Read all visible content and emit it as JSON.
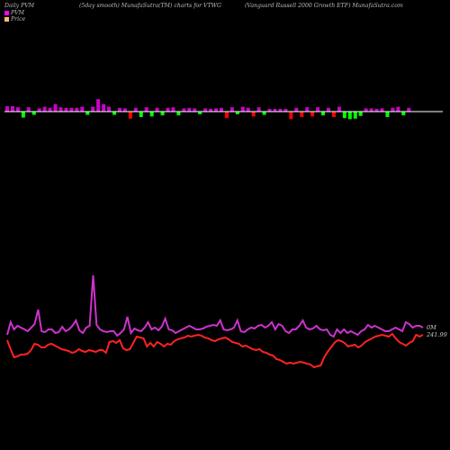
{
  "header": {
    "left": "Daily PVM",
    "middle": "(5day smooth) MunafaSutra(TM) charts for VTWG",
    "right": "(Vanguard Russell 2000  Growth ETF) MunafaSutra.com"
  },
  "legend": {
    "pvm_label": "PVM",
    "price_label": "Price",
    "pvm_color": "#ff00ff",
    "price_color": "#ffbb77"
  },
  "chart_data": {
    "type": "line",
    "price_last_label": "241.99",
    "volume_last_label": "0M",
    "colors": {
      "pvm_positive": "#cc00cc",
      "pvm_negative_up": "#ff0000",
      "pvm_negative": "#00ff00",
      "volume_line": "#cc33cc",
      "price_line": "#ff2222",
      "baseline": "#ffffff"
    },
    "pvm": [
      {
        "v": 1.0,
        "c": "pos"
      },
      {
        "v": 1.0,
        "c": "pos"
      },
      {
        "v": 0.8,
        "c": "pos"
      },
      {
        "v": -1.1,
        "c": "neg"
      },
      {
        "v": 0.8,
        "c": "pos"
      },
      {
        "v": -0.6,
        "c": "neg"
      },
      {
        "v": 0.6,
        "c": "pos"
      },
      {
        "v": 0.9,
        "c": "pos"
      },
      {
        "v": 0.7,
        "c": "pos"
      },
      {
        "v": 1.4,
        "c": "pos"
      },
      {
        "v": 0.8,
        "c": "pos"
      },
      {
        "v": 0.7,
        "c": "pos"
      },
      {
        "v": 0.7,
        "c": "pos"
      },
      {
        "v": 0.7,
        "c": "pos"
      },
      {
        "v": 0.9,
        "c": "pos"
      },
      {
        "v": -0.6,
        "c": "neg"
      },
      {
        "v": 0.9,
        "c": "pos"
      },
      {
        "v": 2.3,
        "c": "pos"
      },
      {
        "v": 1.4,
        "c": "pos"
      },
      {
        "v": 0.9,
        "c": "pos"
      },
      {
        "v": -0.6,
        "c": "neg"
      },
      {
        "v": 0.7,
        "c": "pos"
      },
      {
        "v": 0.6,
        "c": "pos"
      },
      {
        "v": -1.3,
        "c": "up"
      },
      {
        "v": 0.7,
        "c": "pos"
      },
      {
        "v": -1.0,
        "c": "neg"
      },
      {
        "v": 0.8,
        "c": "pos"
      },
      {
        "v": -0.9,
        "c": "neg"
      },
      {
        "v": 0.7,
        "c": "pos"
      },
      {
        "v": -0.7,
        "c": "neg"
      },
      {
        "v": 0.7,
        "c": "pos"
      },
      {
        "v": 0.8,
        "c": "pos"
      },
      {
        "v": -0.7,
        "c": "neg"
      },
      {
        "v": 0.6,
        "c": "pos"
      },
      {
        "v": 0.7,
        "c": "pos"
      },
      {
        "v": 0.6,
        "c": "pos"
      },
      {
        "v": -0.5,
        "c": "neg"
      },
      {
        "v": 0.6,
        "c": "pos"
      },
      {
        "v": 0.5,
        "c": "pos"
      },
      {
        "v": 0.6,
        "c": "pos"
      },
      {
        "v": 0.7,
        "c": "pos"
      },
      {
        "v": -1.2,
        "c": "up"
      },
      {
        "v": 0.8,
        "c": "pos"
      },
      {
        "v": -0.5,
        "c": "neg"
      },
      {
        "v": 0.9,
        "c": "pos"
      },
      {
        "v": 0.7,
        "c": "pos"
      },
      {
        "v": -0.9,
        "c": "up"
      },
      {
        "v": 0.8,
        "c": "pos"
      },
      {
        "v": -0.6,
        "c": "neg"
      },
      {
        "v": 0.5,
        "c": "pos"
      },
      {
        "v": 0.5,
        "c": "pos"
      },
      {
        "v": 0.5,
        "c": "pos"
      },
      {
        "v": 0.5,
        "c": "pos"
      },
      {
        "v": -1.4,
        "c": "up"
      },
      {
        "v": 0.7,
        "c": "pos"
      },
      {
        "v": -1.0,
        "c": "up"
      },
      {
        "v": 0.8,
        "c": "pos"
      },
      {
        "v": -0.9,
        "c": "up"
      },
      {
        "v": 0.8,
        "c": "pos"
      },
      {
        "v": -0.7,
        "c": "neg"
      },
      {
        "v": 0.7,
        "c": "pos"
      },
      {
        "v": -1.0,
        "c": "up"
      },
      {
        "v": 0.9,
        "c": "pos"
      },
      {
        "v": -1.2,
        "c": "neg"
      },
      {
        "v": -1.4,
        "c": "neg"
      },
      {
        "v": -1.3,
        "c": "neg"
      },
      {
        "v": -0.8,
        "c": "neg"
      },
      {
        "v": 0.6,
        "c": "pos"
      },
      {
        "v": 0.6,
        "c": "pos"
      },
      {
        "v": 0.5,
        "c": "pos"
      },
      {
        "v": 0.6,
        "c": "pos"
      },
      {
        "v": -1.0,
        "c": "neg"
      },
      {
        "v": 0.7,
        "c": "pos"
      },
      {
        "v": 0.9,
        "c": "pos"
      },
      {
        "v": -0.7,
        "c": "neg"
      },
      {
        "v": 0.7,
        "c": "pos"
      }
    ],
    "volume": [
      372,
      358,
      366,
      362,
      364,
      366,
      368,
      364,
      360,
      344,
      368,
      369,
      366,
      366,
      370,
      369,
      363,
      368,
      366,
      362,
      356,
      367,
      370,
      364,
      362,
      306,
      361,
      366,
      368,
      369,
      368,
      368,
      373,
      370,
      366,
      352,
      370,
      365,
      367,
      368,
      364,
      358,
      366,
      364,
      367,
      363,
      354,
      366,
      367,
      370,
      368,
      366,
      364,
      362,
      364,
      366,
      366,
      365,
      363,
      362,
      361,
      362,
      356,
      366,
      367,
      366,
      364,
      356,
      368,
      369,
      366,
      364,
      365,
      362,
      361,
      364,
      362,
      358,
      366,
      360,
      362,
      368,
      370,
      366,
      366,
      362,
      356,
      364,
      366,
      365,
      362,
      366,
      367,
      366,
      372,
      374,
      366,
      370,
      366,
      370,
      368,
      370,
      372,
      368,
      366,
      361,
      364,
      362,
      364,
      366,
      368,
      368,
      366,
      364,
      366,
      368,
      358,
      360,
      364,
      362,
      362,
      364
    ],
    "price": [
      378,
      388,
      397,
      396,
      394,
      394,
      393,
      389,
      382,
      383,
      386,
      386,
      383,
      382,
      384,
      386,
      388,
      389,
      390,
      392,
      391,
      388,
      390,
      391,
      389,
      390,
      391,
      389,
      389,
      392,
      380,
      379,
      381,
      378,
      387,
      389,
      388,
      381,
      374,
      375,
      376,
      385,
      381,
      385,
      380,
      382,
      385,
      382,
      383,
      379,
      377,
      376,
      375,
      373,
      374,
      373,
      372,
      373,
      375,
      376,
      378,
      379,
      377,
      376,
      375,
      377,
      380,
      381,
      382,
      385,
      384,
      386,
      388,
      389,
      388,
      391,
      392,
      394,
      395,
      399,
      400,
      402,
      404,
      403,
      404,
      403,
      402,
      403,
      404,
      405,
      408,
      407,
      406,
      397,
      391,
      386,
      381,
      378,
      379,
      381,
      385,
      384,
      383,
      386,
      384,
      380,
      378,
      376,
      374,
      373,
      372,
      373,
      374,
      371,
      376,
      380,
      382,
      384,
      381,
      379,
      372,
      374,
      372
    ]
  }
}
